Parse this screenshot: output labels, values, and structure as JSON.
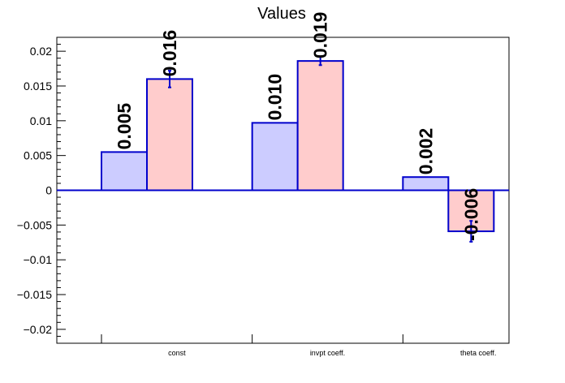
{
  "chart_data": {
    "type": "bar",
    "title": "Values",
    "xlabel": "",
    "ylabel": "",
    "categories": [
      "const",
      "invpt coeff.",
      "theta coeff."
    ],
    "ylim": [
      -0.022,
      0.022
    ],
    "yticks": [
      "0.02",
      "0.015",
      "0.01",
      "0.005",
      "0",
      "-0.005",
      "-0.01",
      "-0.015",
      "-0.02"
    ],
    "grid": false,
    "legend": "none",
    "series": [
      {
        "values": [
          0.0055,
          0.0097,
          0.0019
        ],
        "labels": [
          "0.005",
          "0.010",
          "0.002"
        ],
        "errors": [
          0,
          0,
          0
        ],
        "fill": "#ccccff",
        "stroke": "#0000cc"
      },
      {
        "values": [
          0.016,
          0.0186,
          -0.0059
        ],
        "labels": [
          "0.016",
          "0.019",
          "-0.006"
        ],
        "errors": [
          0.0012,
          0.0006,
          0.0015
        ],
        "fill": "#ffcccc",
        "stroke": "#0000cc"
      }
    ]
  }
}
